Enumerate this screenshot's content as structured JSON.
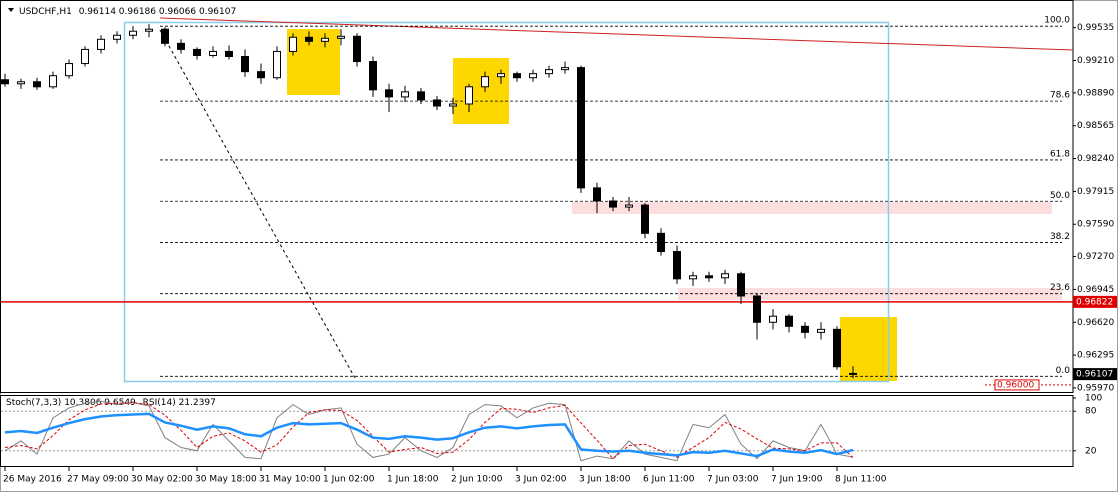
{
  "chart_data": [
    {
      "type": "candlestick",
      "title": "USDCHF,H1",
      "categories": [
        "26 May 2016",
        null,
        null,
        null,
        "27 May 09:00",
        null,
        null,
        null,
        "30 May 02:00",
        null,
        null,
        null,
        "30 May 18:00",
        null,
        null,
        null,
        "31 May 10:00",
        null,
        null,
        null,
        "1 Jun 02:00",
        null,
        null,
        null,
        "1 Jun 18:00",
        null,
        null,
        null,
        "2 Jun 10:00",
        null,
        null,
        null,
        "3 Jun 02:00",
        null,
        null,
        null,
        "3 Jun 18:00",
        null,
        null,
        null,
        "6 Jun 11:00",
        null,
        null,
        null,
        "7 Jun 03:00",
        null,
        null,
        null,
        "7 Jun 19:00",
        null,
        null,
        null,
        "8 Jun 11:00",
        null
      ],
      "open": [
        0.9902,
        0.9898,
        0.99,
        0.9895,
        0.9906,
        0.9918,
        0.9932,
        0.9942,
        0.9946,
        0.995,
        0.9952,
        0.9938,
        0.9932,
        0.9926,
        0.993,
        0.9925,
        0.991,
        0.9904,
        0.993,
        0.9944,
        0.994,
        0.9943,
        0.9945,
        0.992,
        0.9892,
        0.9885,
        0.989,
        0.9882,
        0.9876,
        0.9878,
        0.9895,
        0.9905,
        0.9908,
        0.9904,
        0.9908,
        0.9912,
        0.9914,
        0.9795,
        0.9782,
        0.9776,
        0.9778,
        0.975,
        0.9732,
        0.9705,
        0.9708,
        0.9706,
        0.971,
        0.9688,
        0.9662,
        0.9668,
        0.9658,
        0.9652,
        0.9655,
        0.96114
      ],
      "high": [
        0.9908,
        0.9903,
        0.9904,
        0.991,
        0.9922,
        0.9935,
        0.9946,
        0.995,
        0.9955,
        0.9957,
        0.9954,
        0.9942,
        0.9934,
        0.9935,
        0.9936,
        0.9932,
        0.9918,
        0.9935,
        0.9948,
        0.995,
        0.9948,
        0.9952,
        0.9948,
        0.9925,
        0.9898,
        0.9896,
        0.9894,
        0.9886,
        0.9884,
        0.9898,
        0.991,
        0.9912,
        0.991,
        0.9912,
        0.9916,
        0.992,
        0.9916,
        0.98,
        0.9786,
        0.9786,
        0.978,
        0.9755,
        0.9738,
        0.9712,
        0.9712,
        0.9714,
        0.9712,
        0.969,
        0.9675,
        0.967,
        0.9662,
        0.9662,
        0.9658,
        0.96186
      ],
      "low": [
        0.9895,
        0.9893,
        0.9892,
        0.9893,
        0.9903,
        0.9915,
        0.9928,
        0.9938,
        0.9942,
        0.9944,
        0.9935,
        0.9928,
        0.9922,
        0.9924,
        0.9922,
        0.9905,
        0.9898,
        0.9902,
        0.9926,
        0.9936,
        0.9934,
        0.9936,
        0.9915,
        0.9885,
        0.987,
        0.988,
        0.9878,
        0.9872,
        0.9868,
        0.987,
        0.989,
        0.9898,
        0.99,
        0.99,
        0.9904,
        0.9908,
        0.979,
        0.977,
        0.9772,
        0.9772,
        0.9745,
        0.9728,
        0.97,
        0.9698,
        0.9702,
        0.97,
        0.968,
        0.9645,
        0.9655,
        0.9652,
        0.9646,
        0.9645,
        0.9615,
        0.96066
      ],
      "close": [
        0.9898,
        0.99,
        0.9895,
        0.9906,
        0.9918,
        0.9932,
        0.9942,
        0.9946,
        0.995,
        0.9952,
        0.9938,
        0.9932,
        0.9926,
        0.993,
        0.9925,
        0.991,
        0.9904,
        0.993,
        0.9944,
        0.994,
        0.9943,
        0.9945,
        0.992,
        0.9892,
        0.9885,
        0.989,
        0.9882,
        0.9876,
        0.9878,
        0.9895,
        0.9905,
        0.9908,
        0.9904,
        0.9908,
        0.9912,
        0.9914,
        0.9795,
        0.9782,
        0.9776,
        0.9778,
        0.975,
        0.9732,
        0.9705,
        0.9708,
        0.9706,
        0.971,
        0.9688,
        0.9662,
        0.9668,
        0.9658,
        0.9652,
        0.9655,
        0.9618,
        0.96107
      ],
      "color": "#000000",
      "up_fill": "#ffffff",
      "ylim": [
        0.9593,
        0.9971
      ],
      "yticks": [
        0.99535,
        {
          "value": 0.9921,
          "label": "0.99210"
        },
        {
          "value": 0.9889,
          "label": "0.98890"
        },
        0.98565,
        {
          "value": 0.9824,
          "label": "0.98240"
        },
        0.97915,
        {
          "value": 0.9759,
          "label": "0.97590"
        },
        {
          "value": 0.9727,
          "label": "0.97270"
        },
        0.96945,
        {
          "value": 0.9662,
          "label": "0.96620"
        },
        0.96295,
        {
          "value": 0.9597,
          "label": "0.95970"
        }
      ],
      "level_line": {
        "value": 0.96822,
        "color": "#e00000"
      },
      "alert_line": {
        "value": 0.96,
        "label": "0.96000",
        "color": "#e00000"
      },
      "fibonacci": {
        "high": 0.9955,
        "low": 0.96085,
        "levels": [
          {
            "value": 100,
            "label": "100.0"
          },
          78.6,
          61.8,
          {
            "value": 50,
            "label": "50.0"
          },
          38.2,
          23.6,
          {
            "value": 0,
            "label": "0.0"
          }
        ]
      }
    },
    {
      "type": "line",
      "ylim": [
        0,
        100
      ],
      "yticks": [
        20,
        80,
        100
      ],
      "series": [
        {
          "name": "Stoch(7,3,3)",
          "color": "#808080",
          "values": [
            20,
            35,
            15,
            70,
            85,
            92,
            95,
            90,
            93,
            88,
            40,
            25,
            20,
            60,
            35,
            10,
            8,
            70,
            90,
            75,
            82,
            85,
            30,
            10,
            15,
            40,
            20,
            10,
            25,
            75,
            90,
            88,
            70,
            85,
            92,
            90,
            5,
            12,
            8,
            35,
            15,
            10,
            5,
            60,
            55,
            75,
            30,
            8,
            35,
            25,
            20,
            60,
            15,
            10.3806
          ]
        },
        {
          "color": "#e00000",
          "values": [
            25,
            28,
            23,
            43,
            67,
            82,
            91,
            92,
            93,
            90,
            74,
            51,
            25,
            42,
            47,
            35,
            18,
            29,
            56,
            78,
            82,
            81,
            66,
            42,
            18,
            22,
            25,
            16,
            18,
            37,
            63,
            84,
            83,
            78,
            85,
            89,
            62,
            36,
            8,
            28,
            30,
            20,
            10,
            25,
            40,
            63,
            53,
            38,
            24,
            23,
            20,
            32,
            32,
            9.6549
          ]
        },
        {
          "name": "RSI(14)",
          "color": "#1e90ff",
          "values": [
            48,
            50,
            47,
            55,
            62,
            68,
            72,
            74,
            75,
            76,
            63,
            58,
            52,
            57,
            54,
            45,
            42,
            55,
            62,
            60,
            61,
            62,
            52,
            40,
            38,
            42,
            40,
            37,
            39,
            48,
            55,
            57,
            54,
            57,
            59,
            60,
            22,
            20,
            19,
            20,
            17,
            15,
            13,
            18,
            17,
            20,
            16,
            12,
            22,
            19,
            17,
            21,
            15,
            21.2397
          ]
        }
      ]
    }
  ]
}
